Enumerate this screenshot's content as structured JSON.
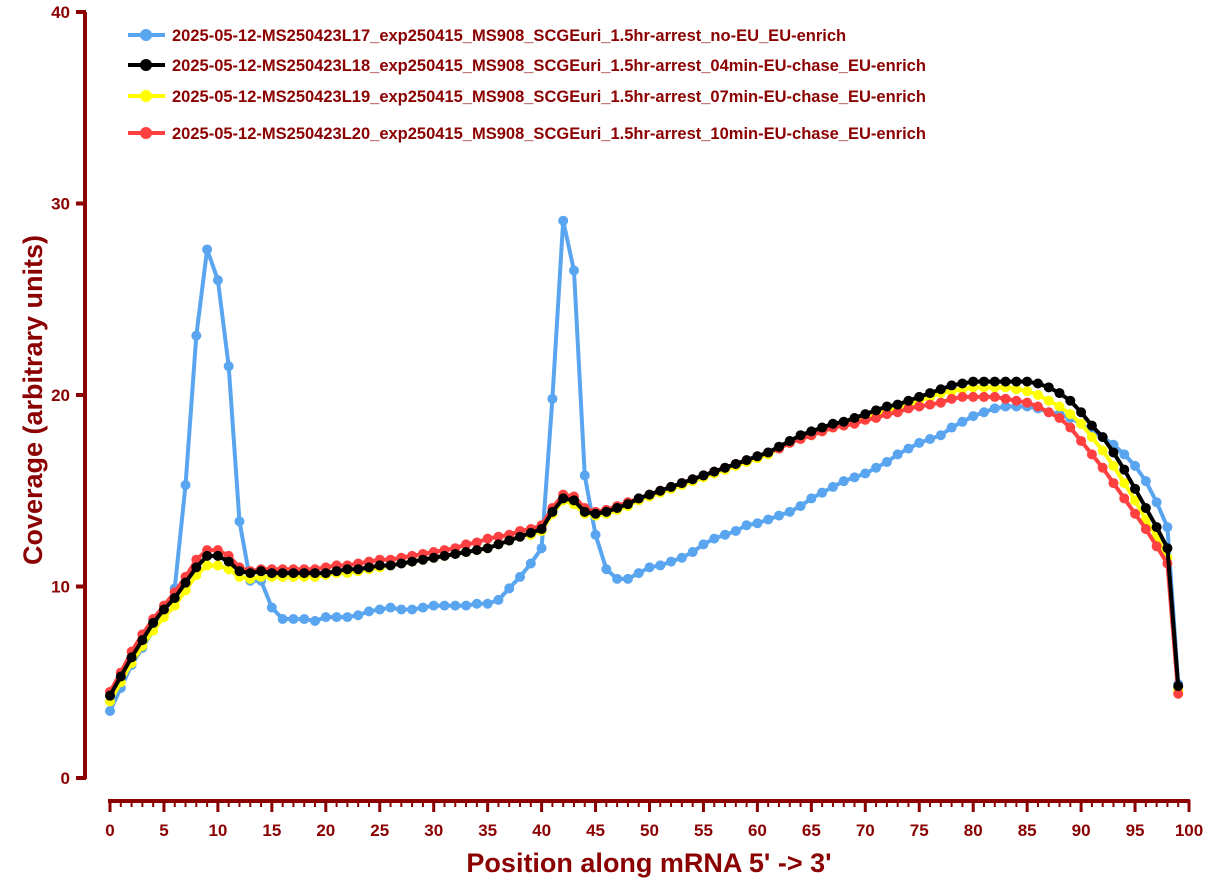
{
  "chart_data": {
    "type": "line",
    "xlabel": "Position along mRNA 5' -> 3'",
    "ylabel": "Coverage (arbitrary units)",
    "xlim": [
      0,
      100
    ],
    "ylim": [
      0,
      40
    ],
    "x_ticks": [
      "0",
      "5",
      "10",
      "15",
      "20",
      "25",
      "30",
      "35",
      "40",
      "45",
      "50",
      "55",
      "60",
      "65",
      "70",
      "75",
      "80",
      "85",
      "90",
      "95",
      "100"
    ],
    "y_ticks": [
      "0",
      "10",
      "20",
      "30",
      "40"
    ],
    "grid": false,
    "legend_position": "top",
    "x": [
      0,
      1,
      2,
      3,
      4,
      5,
      6,
      7,
      8,
      9,
      10,
      11,
      12,
      13,
      14,
      15,
      16,
      17,
      18,
      19,
      20,
      21,
      22,
      23,
      24,
      25,
      26,
      27,
      28,
      29,
      30,
      31,
      32,
      33,
      34,
      35,
      36,
      37,
      38,
      39,
      40,
      41,
      42,
      43,
      44,
      45,
      46,
      47,
      48,
      49,
      50,
      51,
      52,
      53,
      54,
      55,
      56,
      57,
      58,
      59,
      60,
      61,
      62,
      63,
      64,
      65,
      66,
      67,
      68,
      69,
      70,
      71,
      72,
      73,
      74,
      75,
      76,
      77,
      78,
      79,
      80,
      81,
      82,
      83,
      84,
      85,
      86,
      87,
      88,
      89,
      90,
      91,
      92,
      93,
      94,
      95,
      96,
      97,
      98,
      99
    ],
    "series": [
      {
        "name": "2025-05-12-MS250423L17_exp250415_MS908_SCGEuri_1.5hr-arrest_no-EU_EU-enrich",
        "color": "#5aa5f0",
        "values": [
          3.5,
          4.7,
          5.9,
          6.8,
          7.7,
          8.6,
          9.9,
          15.3,
          23.1,
          27.6,
          26.0,
          21.5,
          13.4,
          10.3,
          10.3,
          8.9,
          8.3,
          8.3,
          8.3,
          8.2,
          8.4,
          8.4,
          8.4,
          8.5,
          8.7,
          8.8,
          8.9,
          8.8,
          8.8,
          8.9,
          9.0,
          9.0,
          9.0,
          9.0,
          9.1,
          9.1,
          9.3,
          9.9,
          10.5,
          11.2,
          12.0,
          19.8,
          29.1,
          26.5,
          15.8,
          12.7,
          10.9,
          10.4,
          10.4,
          10.7,
          11.0,
          11.1,
          11.3,
          11.5,
          11.8,
          12.2,
          12.5,
          12.7,
          12.9,
          13.2,
          13.3,
          13.5,
          13.7,
          13.9,
          14.2,
          14.6,
          14.9,
          15.2,
          15.5,
          15.7,
          15.9,
          16.2,
          16.5,
          16.9,
          17.2,
          17.5,
          17.7,
          17.9,
          18.3,
          18.6,
          18.9,
          19.1,
          19.3,
          19.4,
          19.4,
          19.4,
          19.3,
          19.1,
          19.0,
          18.8,
          18.5,
          18.1,
          17.8,
          17.4,
          16.9,
          16.3,
          15.5,
          14.4,
          13.1,
          4.9
        ]
      },
      {
        "name": "2025-05-12-MS250423L18_exp250415_MS908_SCGEuri_1.5hr-arrest_04min-EU-chase_EU-enrich",
        "color": "#000000",
        "values": [
          4.3,
          5.3,
          6.3,
          7.2,
          8.1,
          8.8,
          9.4,
          10.2,
          11.0,
          11.6,
          11.6,
          11.3,
          10.8,
          10.7,
          10.8,
          10.7,
          10.7,
          10.7,
          10.7,
          10.7,
          10.7,
          10.8,
          10.9,
          10.9,
          11.0,
          11.1,
          11.1,
          11.2,
          11.3,
          11.4,
          11.5,
          11.6,
          11.7,
          11.8,
          11.9,
          12.0,
          12.2,
          12.4,
          12.6,
          12.8,
          13.0,
          13.9,
          14.6,
          14.5,
          13.9,
          13.8,
          13.9,
          14.1,
          14.3,
          14.6,
          14.8,
          15.0,
          15.2,
          15.4,
          15.6,
          15.8,
          16.0,
          16.2,
          16.4,
          16.6,
          16.8,
          17.0,
          17.3,
          17.6,
          17.9,
          18.1,
          18.3,
          18.5,
          18.6,
          18.8,
          19.0,
          19.2,
          19.4,
          19.5,
          19.7,
          19.9,
          20.1,
          20.3,
          20.5,
          20.6,
          20.7,
          20.7,
          20.7,
          20.7,
          20.7,
          20.7,
          20.6,
          20.4,
          20.1,
          19.7,
          19.1,
          18.4,
          17.8,
          17.0,
          16.1,
          15.1,
          14.1,
          13.1,
          12.0,
          4.8
        ]
      },
      {
        "name": "2025-05-12-MS250423L19_exp250415_MS908_SCGEuri_1.5hr-arrest_07min-EU-chase_EU-enrich",
        "color": "#ffff00",
        "values": [
          4.0,
          5.0,
          6.0,
          6.9,
          7.7,
          8.4,
          9.0,
          9.8,
          10.6,
          11.1,
          11.1,
          10.9,
          10.5,
          10.4,
          10.5,
          10.5,
          10.5,
          10.5,
          10.5,
          10.5,
          10.6,
          10.7,
          10.7,
          10.8,
          10.9,
          11.0,
          11.1,
          11.2,
          11.3,
          11.4,
          11.5,
          11.6,
          11.7,
          11.8,
          11.9,
          12.0,
          12.2,
          12.4,
          12.6,
          12.7,
          12.9,
          13.8,
          14.5,
          14.3,
          13.8,
          13.7,
          13.8,
          14.0,
          14.2,
          14.5,
          14.7,
          14.9,
          15.1,
          15.3,
          15.5,
          15.7,
          15.9,
          16.1,
          16.3,
          16.5,
          16.7,
          16.9,
          17.2,
          17.5,
          17.7,
          17.9,
          18.1,
          18.3,
          18.4,
          18.6,
          18.8,
          19.0,
          19.2,
          19.3,
          19.5,
          19.7,
          19.9,
          20.1,
          20.2,
          20.3,
          20.4,
          20.4,
          20.4,
          20.4,
          20.3,
          20.2,
          20.0,
          19.7,
          19.4,
          19.0,
          18.5,
          17.8,
          17.1,
          16.3,
          15.4,
          14.5,
          13.5,
          12.6,
          11.5,
          4.6
        ]
      },
      {
        "name": "2025-05-12-MS250423L20_exp250415_MS908_SCGEuri_1.5hr-arrest_10min-EU-chase_EU-enrich",
        "color": "#ff4040",
        "values": [
          4.5,
          5.5,
          6.6,
          7.5,
          8.3,
          9.0,
          9.7,
          10.5,
          11.4,
          11.9,
          11.9,
          11.6,
          11.0,
          10.8,
          10.9,
          10.9,
          10.9,
          10.9,
          10.9,
          10.9,
          11.0,
          11.1,
          11.1,
          11.2,
          11.3,
          11.4,
          11.4,
          11.5,
          11.6,
          11.7,
          11.8,
          11.9,
          12.0,
          12.2,
          12.3,
          12.5,
          12.6,
          12.7,
          12.9,
          13.0,
          13.2,
          14.1,
          14.8,
          14.7,
          14.1,
          13.9,
          14.0,
          14.2,
          14.4,
          14.6,
          14.8,
          15.0,
          15.2,
          15.4,
          15.6,
          15.8,
          16.0,
          16.2,
          16.4,
          16.6,
          16.8,
          17.0,
          17.2,
          17.5,
          17.7,
          17.9,
          18.1,
          18.3,
          18.4,
          18.5,
          18.7,
          18.8,
          19.0,
          19.1,
          19.3,
          19.4,
          19.5,
          19.6,
          19.8,
          19.9,
          19.9,
          19.9,
          19.9,
          19.8,
          19.7,
          19.6,
          19.4,
          19.1,
          18.8,
          18.3,
          17.6,
          16.9,
          16.2,
          15.4,
          14.6,
          13.8,
          13.0,
          12.1,
          11.2,
          4.4
        ]
      }
    ]
  }
}
